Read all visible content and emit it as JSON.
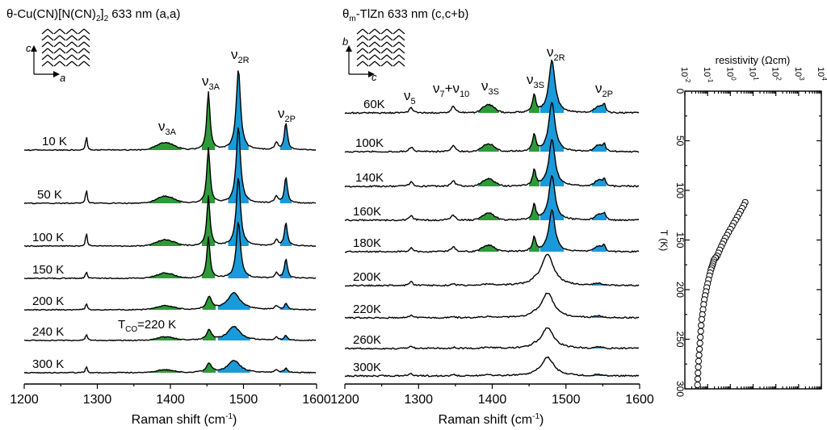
{
  "panel_a": {
    "title_main": "θ-Cu(CN)[N(CN)",
    "title_sub1": "2",
    "title_mid": "]",
    "title_sub2": "2",
    "title_tail": " 633 nm (a,a)",
    "axis_c": "c",
    "axis_a": "a",
    "xlabel": "Raman shift (cm",
    "xlabel_sup": "-1",
    "xlabel_end": ")",
    "annotation_main": "T",
    "annotation_sub": "CO",
    "annotation_tail": "=220 K"
  },
  "panel_b": {
    "title_theta": "θ",
    "title_sub": "m",
    "title_tail": "-TlZn 633 nm (c,c+b)",
    "axis_b": "b",
    "axis_c": "c",
    "xlabel": "Raman shift (cm",
    "xlabel_sup": "-1",
    "xlabel_end": ")"
  },
  "panel_c": {
    "top_label": "resistivity  (Ωcm)",
    "ylabel": "T (K)"
  },
  "chart_data": [
    {
      "type": "line",
      "panel": "θ-Cu(CN)[N(CN)2]2 633 nm (a,a)",
      "xlabel": "Raman shift (cm-1)",
      "xlim": [
        1200,
        1600
      ],
      "xticks": [
        "1200",
        "1300",
        "1400",
        "1500",
        "1600"
      ],
      "series_labels": [
        "10 K",
        "50 K",
        "100 K",
        "150 K",
        "200 K",
        "240 K",
        "300 K"
      ],
      "peaks": [
        {
          "label": "ν3A",
          "base": "ν",
          "sub": "3A",
          "position": 1393,
          "color": "green"
        },
        {
          "label": "ν3A",
          "base": "ν",
          "sub": "3A",
          "position": 1452,
          "color": "green"
        },
        {
          "label": "ν2R",
          "base": "ν",
          "sub": "2R",
          "position": 1493,
          "color": "blue"
        },
        {
          "label": "ν2P",
          "base": "ν",
          "sub": "2P",
          "position": 1558,
          "color": "blue"
        }
      ],
      "sharp_line": 1285,
      "annotation": "TCO=220 K"
    },
    {
      "type": "line",
      "panel": "θm-TlZn 633 nm (c,c+b)",
      "xlabel": "Raman shift (cm-1)",
      "xlim": [
        1200,
        1600
      ],
      "xticks": [
        "1200",
        "1300",
        "1400",
        "1500",
        "1600"
      ],
      "series_labels": [
        "60K",
        "100K",
        "140K",
        "160K",
        "180K",
        "200K",
        "220K",
        "260K",
        "300K"
      ],
      "peaks": [
        {
          "label": "ν5",
          "base": "ν",
          "sub": "5",
          "position": 1290,
          "color": "none"
        },
        {
          "label": "ν7+ν10",
          "base": "ν",
          "sub": "7",
          "extra_base": "+ν",
          "extra_sub": "10",
          "position": 1347,
          "color": "none"
        },
        {
          "label": "ν3S",
          "base": "ν",
          "sub": "3S",
          "position": 1395,
          "color": "green"
        },
        {
          "label": "ν3S",
          "base": "ν",
          "sub": "3S",
          "position": 1457,
          "color": "green"
        },
        {
          "label": "ν2R",
          "base": "ν",
          "sub": "2R",
          "position": 1481,
          "color": "blue"
        },
        {
          "label": "ν2P",
          "base": "ν",
          "sub": "2P",
          "position": 1545,
          "color": "blue"
        }
      ]
    },
    {
      "type": "scatter",
      "x_axis": "resistivity (Ωcm)",
      "x_scale": "log",
      "xlim": [
        0.01,
        10000
      ],
      "xticks": [
        {
          "base": "10",
          "exp": "-2"
        },
        {
          "base": "10",
          "exp": "-1"
        },
        {
          "base": "10",
          "exp": "0"
        },
        {
          "base": "10",
          "exp": "1"
        },
        {
          "base": "10",
          "exp": "2"
        },
        {
          "base": "10",
          "exp": "3"
        },
        {
          "base": "10",
          "exp": "4"
        }
      ],
      "ylabel": "T (K)",
      "ylim": [
        0,
        300
      ],
      "y_inverted": true,
      "yticks": [
        "0",
        "50",
        "100",
        "150",
        "200",
        "250",
        "300"
      ],
      "marker": "open circle",
      "series": [
        {
          "segment": "high-resistivity branch",
          "points": [
            [
              4.5,
              112
            ],
            [
              3.9,
              115
            ],
            [
              3.3,
              118
            ],
            [
              2.8,
              121
            ],
            [
              2.4,
              124
            ],
            [
              2.0,
              127
            ],
            [
              1.7,
              130
            ],
            [
              1.4,
              133
            ],
            [
              1.2,
              136
            ],
            [
              1.0,
              139
            ],
            [
              0.84,
              142
            ],
            [
              0.72,
              145
            ],
            [
              0.6,
              148
            ],
            [
              0.52,
              151
            ],
            [
              0.45,
              154
            ],
            [
              0.39,
              157
            ],
            [
              0.34,
              160
            ],
            [
              0.3,
              163
            ],
            [
              0.26,
              166
            ],
            [
              0.23,
              168
            ]
          ]
        },
        {
          "segment": "isolated point",
          "points": [
            [
              0.22,
              168
            ]
          ]
        },
        {
          "segment": "low-resistivity branch",
          "points": [
            [
              0.19,
              170
            ],
            [
              0.18,
              172
            ],
            [
              0.17,
              174
            ],
            [
              0.16,
              176
            ],
            [
              0.15,
              178
            ],
            [
              0.14,
              180
            ],
            [
              0.13,
              183
            ],
            [
              0.12,
              186
            ],
            [
              0.11,
              190
            ],
            [
              0.1,
              194
            ],
            [
              0.092,
              198
            ],
            [
              0.085,
              202
            ],
            [
              0.078,
              206
            ],
            [
              0.072,
              210
            ],
            [
              0.067,
              215
            ],
            [
              0.063,
              220
            ],
            [
              0.059,
              225
            ],
            [
              0.055,
              230
            ],
            [
              0.052,
              236
            ],
            [
              0.05,
              242
            ],
            [
              0.048,
              248
            ],
            [
              0.046,
              254
            ],
            [
              0.044,
              260
            ],
            [
              0.042,
              266
            ],
            [
              0.04,
              272
            ],
            [
              0.039,
              278
            ],
            [
              0.038,
              284
            ],
            [
              0.037,
              290
            ],
            [
              0.036,
              296
            ]
          ]
        }
      ]
    }
  ]
}
